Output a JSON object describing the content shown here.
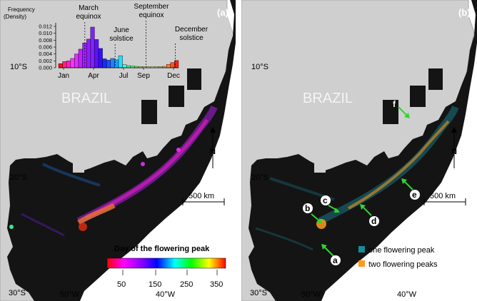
{
  "panel_a": {
    "label": "(a)",
    "country": "BRAZIL",
    "lat_labels": [
      "10°S",
      "20°S",
      "30°S"
    ],
    "lon_labels": [
      "50°W",
      "40°W"
    ],
    "north": "N",
    "scale_bar": "500 km",
    "colorbar": {
      "title": "Day of the flowering peak",
      "ticks": [
        "50",
        "150",
        "250",
        "350"
      ],
      "colors": [
        "#ff0000",
        "#ff00ff",
        "#8000ff",
        "#0000ff",
        "#00ffff",
        "#00ff00",
        "#ffff00",
        "#ff0000"
      ]
    }
  },
  "panel_b": {
    "label": "(b)",
    "country": "BRAZIL",
    "lat_labels": [
      "10°S",
      "20°S",
      "30°S"
    ],
    "lon_labels": [
      "50°W",
      "40°W"
    ],
    "north": "N",
    "scale_bar": "500 km",
    "point_labels": [
      "a",
      "b",
      "c",
      "d",
      "e",
      "f"
    ],
    "legend": [
      {
        "label": "one flowering peak",
        "color": "#1a8a99"
      },
      {
        "label": "two flowering peaks",
        "color": "#ff9a1a"
      }
    ]
  },
  "chart_data": {
    "type": "bar",
    "title": "",
    "ylabel": "Frequency (Density)",
    "ylim": [
      0,
      0.012
    ],
    "yticks": [
      "0.000",
      "0.002",
      "0.004",
      "0.006",
      "0.008",
      "0.010",
      "0.012"
    ],
    "xticks": [
      "Jan",
      "Apr",
      "Jul",
      "Sep",
      "Dec"
    ],
    "values": [
      0.0012,
      0.0018,
      0.002,
      0.0027,
      0.004,
      0.0054,
      0.0072,
      0.0083,
      0.0118,
      0.0082,
      0.0056,
      0.0026,
      0.0022,
      0.0027,
      0.0023,
      0.0035,
      0.0009,
      0.0006,
      0.0005,
      0.0004,
      0.0003,
      0.0003,
      0.0003,
      0.0003,
      0.0003,
      0.0003,
      0.0004,
      0.001,
      0.0015,
      0.0021
    ],
    "bar_colors": [
      "#ff1010",
      "#ff2080",
      "#ff20d0",
      "#ff30ff",
      "#e030ff",
      "#c020ff",
      "#a020ff",
      "#9020ff",
      "#8020ff",
      "#6010ff",
      "#3010ff",
      "#1030ff",
      "#2050ff",
      "#2080ff",
      "#20a0ff",
      "#20e0ff",
      "#40ffd0",
      "#40ffa0",
      "#50ff70",
      "#70ff50",
      "#a0ff40",
      "#c0ff40",
      "#e0ff40",
      "#ffff40",
      "#ffe040",
      "#ffc040",
      "#ffa040",
      "#ff8030",
      "#ff5020",
      "#ff2010"
    ],
    "annotations": [
      {
        "text": [
          "March",
          "equinox"
        ],
        "day": 80
      },
      {
        "text": [
          "June",
          "solstice"
        ],
        "day": 172
      },
      {
        "text": [
          "September",
          "equinox"
        ],
        "day": 266
      },
      {
        "text": [
          "December",
          "solstice"
        ],
        "day": 355
      }
    ]
  }
}
